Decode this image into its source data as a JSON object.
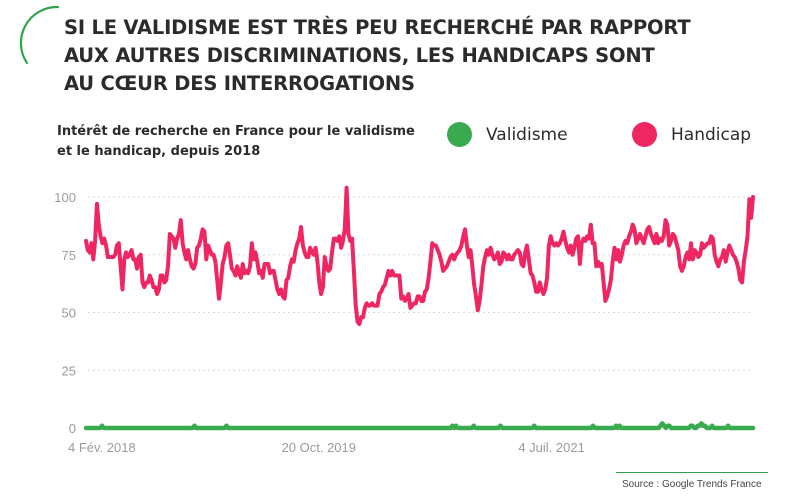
{
  "title_lines": [
    "SI LE VALIDISME EST TRÈS PEU RECHERCHÉ PAR RAPPORT",
    "AUX AUTRES DISCRIMINATIONS, LES HANDICAPS SONT",
    "AU CŒUR DES INTERROGATIONS"
  ],
  "subtitle_lines": [
    "Intérêt de recherche en France pour le validisme",
    "et le handicap, depuis 2018"
  ],
  "legend": [
    {
      "label": "Validisme",
      "color": "#3aaa4f"
    },
    {
      "label": "Handicap",
      "color": "#ee2762"
    }
  ],
  "source": "Source : Google Trends France",
  "colors": {
    "accent": "#3aaa4f",
    "arc": "#2ea44f",
    "title": "#2b2b2b"
  },
  "chart_data": {
    "type": "line",
    "x_start": "2018-02-04",
    "x_end": "2022-12-25",
    "x_tick_labels": [
      "4 Fév. 2018",
      "20 Oct. 2019",
      "4 Juil. 2021"
    ],
    "x_tick_dates": [
      "2018-02-04",
      "2019-10-20",
      "2021-07-04"
    ],
    "y_ticks": [
      0,
      25,
      50,
      75,
      100
    ],
    "ylim": [
      0,
      100
    ],
    "grid": true,
    "legend_position": "top-right",
    "series": [
      {
        "name": "Validisme",
        "color": "#3aaa4f",
        "values": [
          0,
          0,
          0,
          0,
          0,
          0,
          0,
          0,
          0,
          1,
          0,
          0,
          0,
          0,
          0,
          0,
          0,
          0,
          0,
          0,
          0,
          0,
          0,
          0,
          0,
          0,
          0,
          0,
          0,
          0,
          0,
          0,
          0,
          0,
          0,
          0,
          0,
          0,
          0,
          0,
          0,
          0,
          0,
          0,
          0,
          0,
          0,
          0,
          0,
          0,
          0,
          0,
          0,
          0,
          0,
          0,
          0,
          0,
          0,
          0,
          0,
          1,
          0,
          0,
          0,
          0,
          0,
          0,
          0,
          0,
          0,
          0,
          0,
          0,
          0,
          0,
          0,
          0,
          0,
          1,
          0,
          0,
          0,
          0,
          0,
          0,
          0,
          0,
          0,
          0,
          0,
          0,
          0,
          0,
          0,
          0,
          0,
          0,
          0,
          0,
          0,
          0,
          0,
          0,
          0,
          0,
          0,
          0,
          0,
          0,
          0,
          0,
          0,
          0,
          0,
          0,
          0,
          0,
          0,
          0,
          0,
          0,
          0,
          0,
          0,
          0,
          0,
          0,
          0,
          0,
          0,
          0,
          0,
          0,
          0,
          0,
          0,
          0,
          0,
          0,
          0,
          0,
          0,
          0,
          0,
          0,
          0,
          0,
          0,
          0,
          0,
          0,
          0,
          0,
          0,
          0,
          0,
          0,
          0,
          0,
          0,
          0,
          0,
          0,
          0,
          0,
          0,
          0,
          0,
          0,
          0,
          0,
          0,
          0,
          0,
          0,
          0,
          0,
          0,
          0,
          0,
          0,
          0,
          0,
          0,
          0,
          0,
          0,
          0,
          0,
          0,
          0,
          0,
          0,
          0,
          0,
          0,
          0,
          0,
          0,
          0,
          0,
          0,
          0,
          0,
          0,
          1,
          0,
          1,
          0,
          0,
          0,
          0,
          0,
          0,
          0,
          0,
          0,
          1,
          0,
          0,
          0,
          0,
          0,
          0,
          0,
          0,
          0,
          0,
          0,
          0,
          0,
          0,
          1,
          0,
          0,
          0,
          0,
          0,
          0,
          0,
          0,
          0,
          0,
          0,
          0,
          0,
          0,
          0,
          0,
          0,
          0,
          1,
          0,
          0,
          0,
          0,
          0,
          0,
          0,
          0,
          0,
          0,
          0,
          0,
          0,
          0,
          0,
          0,
          0,
          0,
          0,
          0,
          0,
          0,
          0,
          0,
          0,
          0,
          0,
          0,
          0,
          0,
          0,
          0,
          1,
          0,
          0,
          0,
          0,
          0,
          0,
          0,
          0,
          0,
          0,
          0,
          0,
          1,
          0,
          1,
          0,
          0,
          0,
          0,
          0,
          0,
          0,
          0,
          0,
          0,
          0,
          0,
          0,
          0,
          0,
          0,
          0,
          0,
          0,
          0,
          0,
          0,
          1,
          2,
          1,
          0,
          1,
          1,
          0,
          0,
          0,
          0,
          0,
          0,
          0,
          0,
          0,
          0,
          0,
          1,
          1,
          0,
          0,
          1,
          1,
          2,
          1,
          1,
          0,
          0,
          0,
          1,
          0,
          0,
          0,
          0,
          0,
          0,
          0,
          0,
          1,
          0,
          0,
          0,
          0,
          0,
          0,
          0,
          0,
          0,
          0,
          0,
          0,
          0,
          0
        ]
      },
      {
        "name": "Handicap",
        "color": "#ee2762",
        "values": [
          81,
          77,
          76,
          80,
          73,
          81,
          97,
          88,
          83,
          80,
          82,
          79,
          74,
          74,
          74,
          74,
          75,
          79,
          80,
          70,
          60,
          73,
          76,
          74,
          75,
          77,
          73,
          73,
          69,
          74,
          75,
          63,
          61,
          63,
          63,
          66,
          64,
          61,
          61,
          58,
          60,
          66,
          66,
          63,
          64,
          70,
          84,
          83,
          82,
          78,
          82,
          84,
          90,
          80,
          76,
          73,
          77,
          73,
          70,
          69,
          71,
          78,
          79,
          82,
          86,
          85,
          73,
          79,
          77,
          75,
          75,
          72,
          64,
          56,
          63,
          71,
          74,
          79,
          80,
          75,
          69,
          68,
          66,
          70,
          67,
          65,
          71,
          67,
          68,
          67,
          70,
          80,
          73,
          76,
          72,
          67,
          68,
          65,
          71,
          71,
          71,
          67,
          68,
          68,
          64,
          60,
          58,
          60,
          57,
          56,
          64,
          65,
          70,
          73,
          72,
          77,
          80,
          82,
          87,
          79,
          76,
          74,
          74,
          78,
          76,
          75,
          78,
          72,
          63,
          58,
          61,
          74,
          70,
          68,
          69,
          76,
          82,
          82,
          81,
          83,
          78,
          81,
          86,
          104,
          84,
          81,
          82,
          68,
          53,
          46,
          45,
          48,
          48,
          52,
          54,
          53,
          53,
          54,
          53,
          53,
          53,
          58,
          59,
          61,
          62,
          65,
          68,
          66,
          68,
          66,
          66,
          66,
          66,
          56,
          57,
          55,
          56,
          58,
          52,
          53,
          54,
          54,
          57,
          57,
          55,
          55,
          59,
          60,
          65,
          72,
          80,
          79,
          79,
          77,
          75,
          72,
          68,
          69,
          70,
          72,
          74,
          75,
          73,
          75,
          76,
          77,
          79,
          83,
          86,
          79,
          74,
          77,
          70,
          62,
          57,
          51,
          55,
          62,
          70,
          74,
          77,
          75,
          78,
          75,
          73,
          74,
          76,
          71,
          72,
          76,
          75,
          73,
          75,
          73,
          73,
          75,
          76,
          77,
          76,
          71,
          70,
          76,
          79,
          73,
          67,
          66,
          63,
          59,
          59,
          63,
          60,
          58,
          60,
          65,
          79,
          83,
          80,
          79,
          80,
          79,
          80,
          82,
          85,
          81,
          78,
          76,
          79,
          75,
          78,
          82,
          83,
          71,
          80,
          82,
          81,
          83,
          82,
          88,
          80,
          80,
          70,
          72,
          70,
          71,
          63,
          55,
          57,
          60,
          64,
          72,
          78,
          73,
          77,
          72,
          75,
          79,
          81,
          80,
          83,
          85,
          88,
          86,
          80,
          82,
          84,
          82,
          80,
          83,
          86,
          87,
          84,
          82,
          80,
          84,
          80,
          82,
          81,
          83,
          90,
          88,
          79,
          81,
          84,
          83,
          80,
          77,
          70,
          68,
          70,
          74,
          76,
          73,
          80,
          73,
          77,
          76,
          74,
          75,
          80,
          78,
          79,
          80,
          80,
          83,
          82,
          75,
          72,
          70,
          73,
          74,
          77,
          72,
          76,
          79,
          77,
          75,
          74,
          72,
          69,
          64,
          63,
          72,
          77,
          83,
          99,
          91,
          100
        ]
      }
    ]
  }
}
